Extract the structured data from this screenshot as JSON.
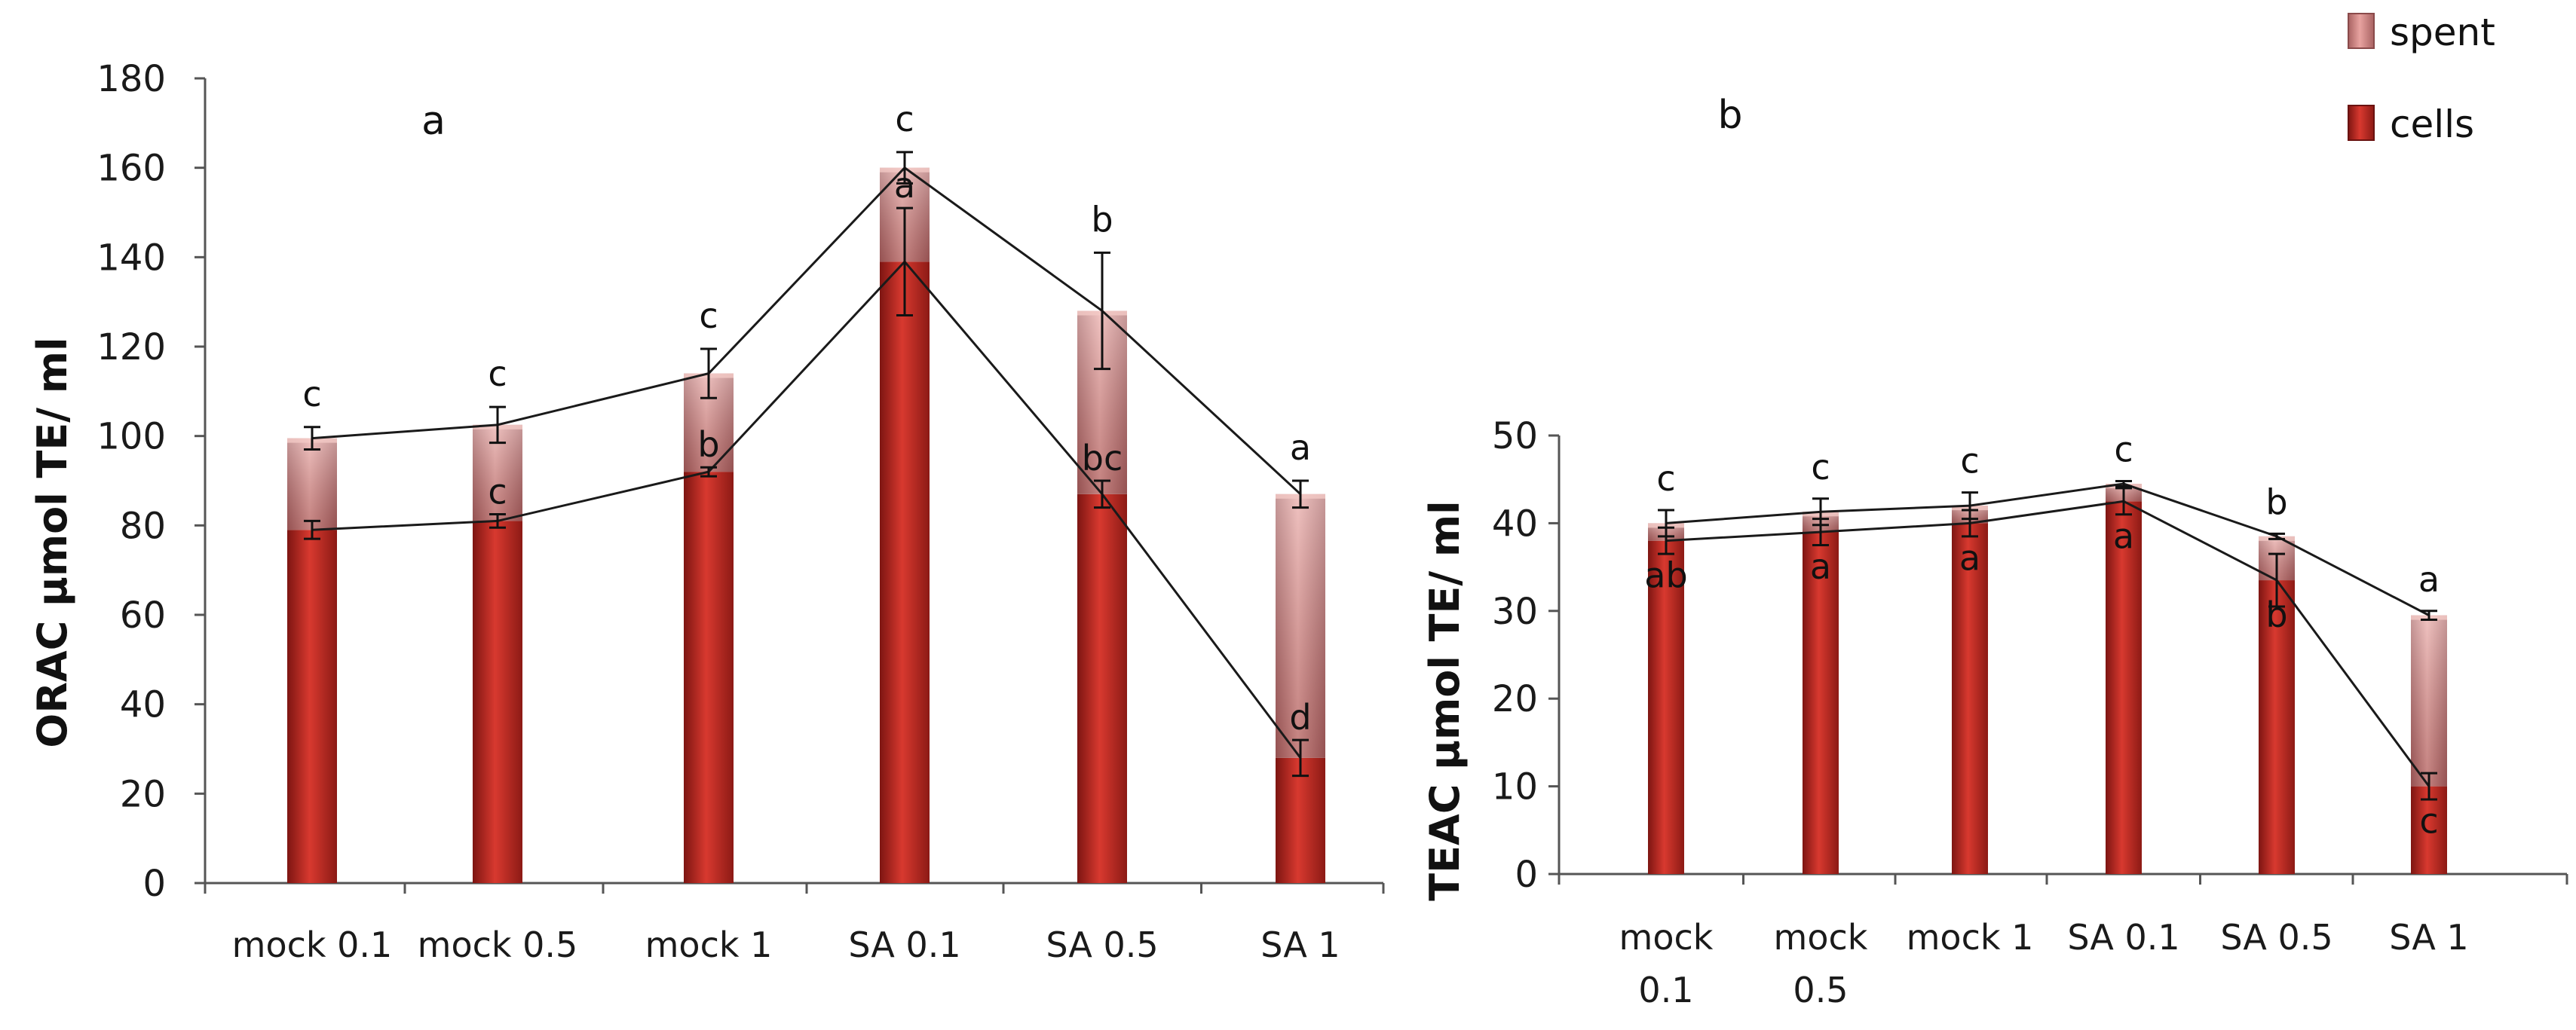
{
  "legend": {
    "spent_label": "spent",
    "cells_label": "cells"
  },
  "colors": {
    "spent": "#d98c8c",
    "spent_dark": "#9e5959",
    "cells": "#c42a22",
    "cells_dark": "#7d1512",
    "axis": "#555555",
    "line": "#1a1a1a"
  },
  "chart_data": [
    {
      "type": "bar",
      "stacked": true,
      "panel_letter": "a",
      "title": "",
      "ylabel": "ORAC µmol TE/ ml",
      "xlabel": "",
      "ylim": [
        0,
        180
      ],
      "yticks": [
        0,
        20,
        40,
        60,
        80,
        100,
        120,
        140,
        160,
        180
      ],
      "categories": [
        "mock 0.1",
        "mock 0.5",
        "mock 1",
        "SA 0.1",
        "SA 0.5",
        "SA 1"
      ],
      "series": [
        {
          "name": "cells",
          "values": [
            79,
            81,
            92,
            139,
            87,
            28
          ],
          "errors": [
            2,
            1.5,
            1,
            12,
            3,
            4
          ]
        },
        {
          "name": "spent",
          "values": [
            20.5,
            21.5,
            22,
            21,
            41,
            59
          ],
          "errors": [
            2.5,
            4,
            5.5,
            3.5,
            13,
            3
          ]
        }
      ],
      "totals": [
        99.5,
        102.5,
        114,
        160,
        128,
        87
      ],
      "letters_cells": [
        "",
        "c",
        "b",
        "a",
        "bc",
        "d"
      ],
      "letters_spent": [
        "c",
        "c",
        "c",
        "c",
        "b",
        "a"
      ]
    },
    {
      "type": "bar",
      "stacked": true,
      "panel_letter": "b",
      "title": "",
      "ylabel": "TEAC µmol TE/ ml",
      "xlabel": "",
      "ylim": [
        0,
        50
      ],
      "yticks": [
        0,
        10,
        20,
        30,
        40,
        50
      ],
      "categories": [
        "mock 0.1",
        "mock 0.5",
        "mock 1",
        "SA 0.1",
        "SA 0.5",
        "SA 1"
      ],
      "category_lines": [
        [
          "mock",
          "0.1"
        ],
        [
          "mock",
          "0.5"
        ],
        [
          "mock 1"
        ],
        [
          "SA 0.1"
        ],
        [
          "SA 0.5"
        ],
        [
          "SA 1"
        ]
      ],
      "series": [
        {
          "name": "cells",
          "values": [
            38,
            39,
            40,
            42.5,
            33.5,
            10
          ],
          "errors": [
            1.5,
            1.5,
            1.5,
            1.5,
            3,
            1.5
          ]
        },
        {
          "name": "spent",
          "values": [
            2,
            2.3,
            2,
            2,
            5,
            19.5
          ],
          "errors": [
            1.5,
            1.5,
            1.5,
            0.3,
            0.3,
            0.5
          ]
        }
      ],
      "totals": [
        40,
        41.3,
        42,
        44.5,
        38.5,
        29.5
      ],
      "letters_cells": [
        "ab",
        "a",
        "a",
        "a",
        "b",
        "c"
      ],
      "letters_spent": [
        "c",
        "c",
        "c",
        "c",
        "b",
        "a"
      ]
    }
  ]
}
